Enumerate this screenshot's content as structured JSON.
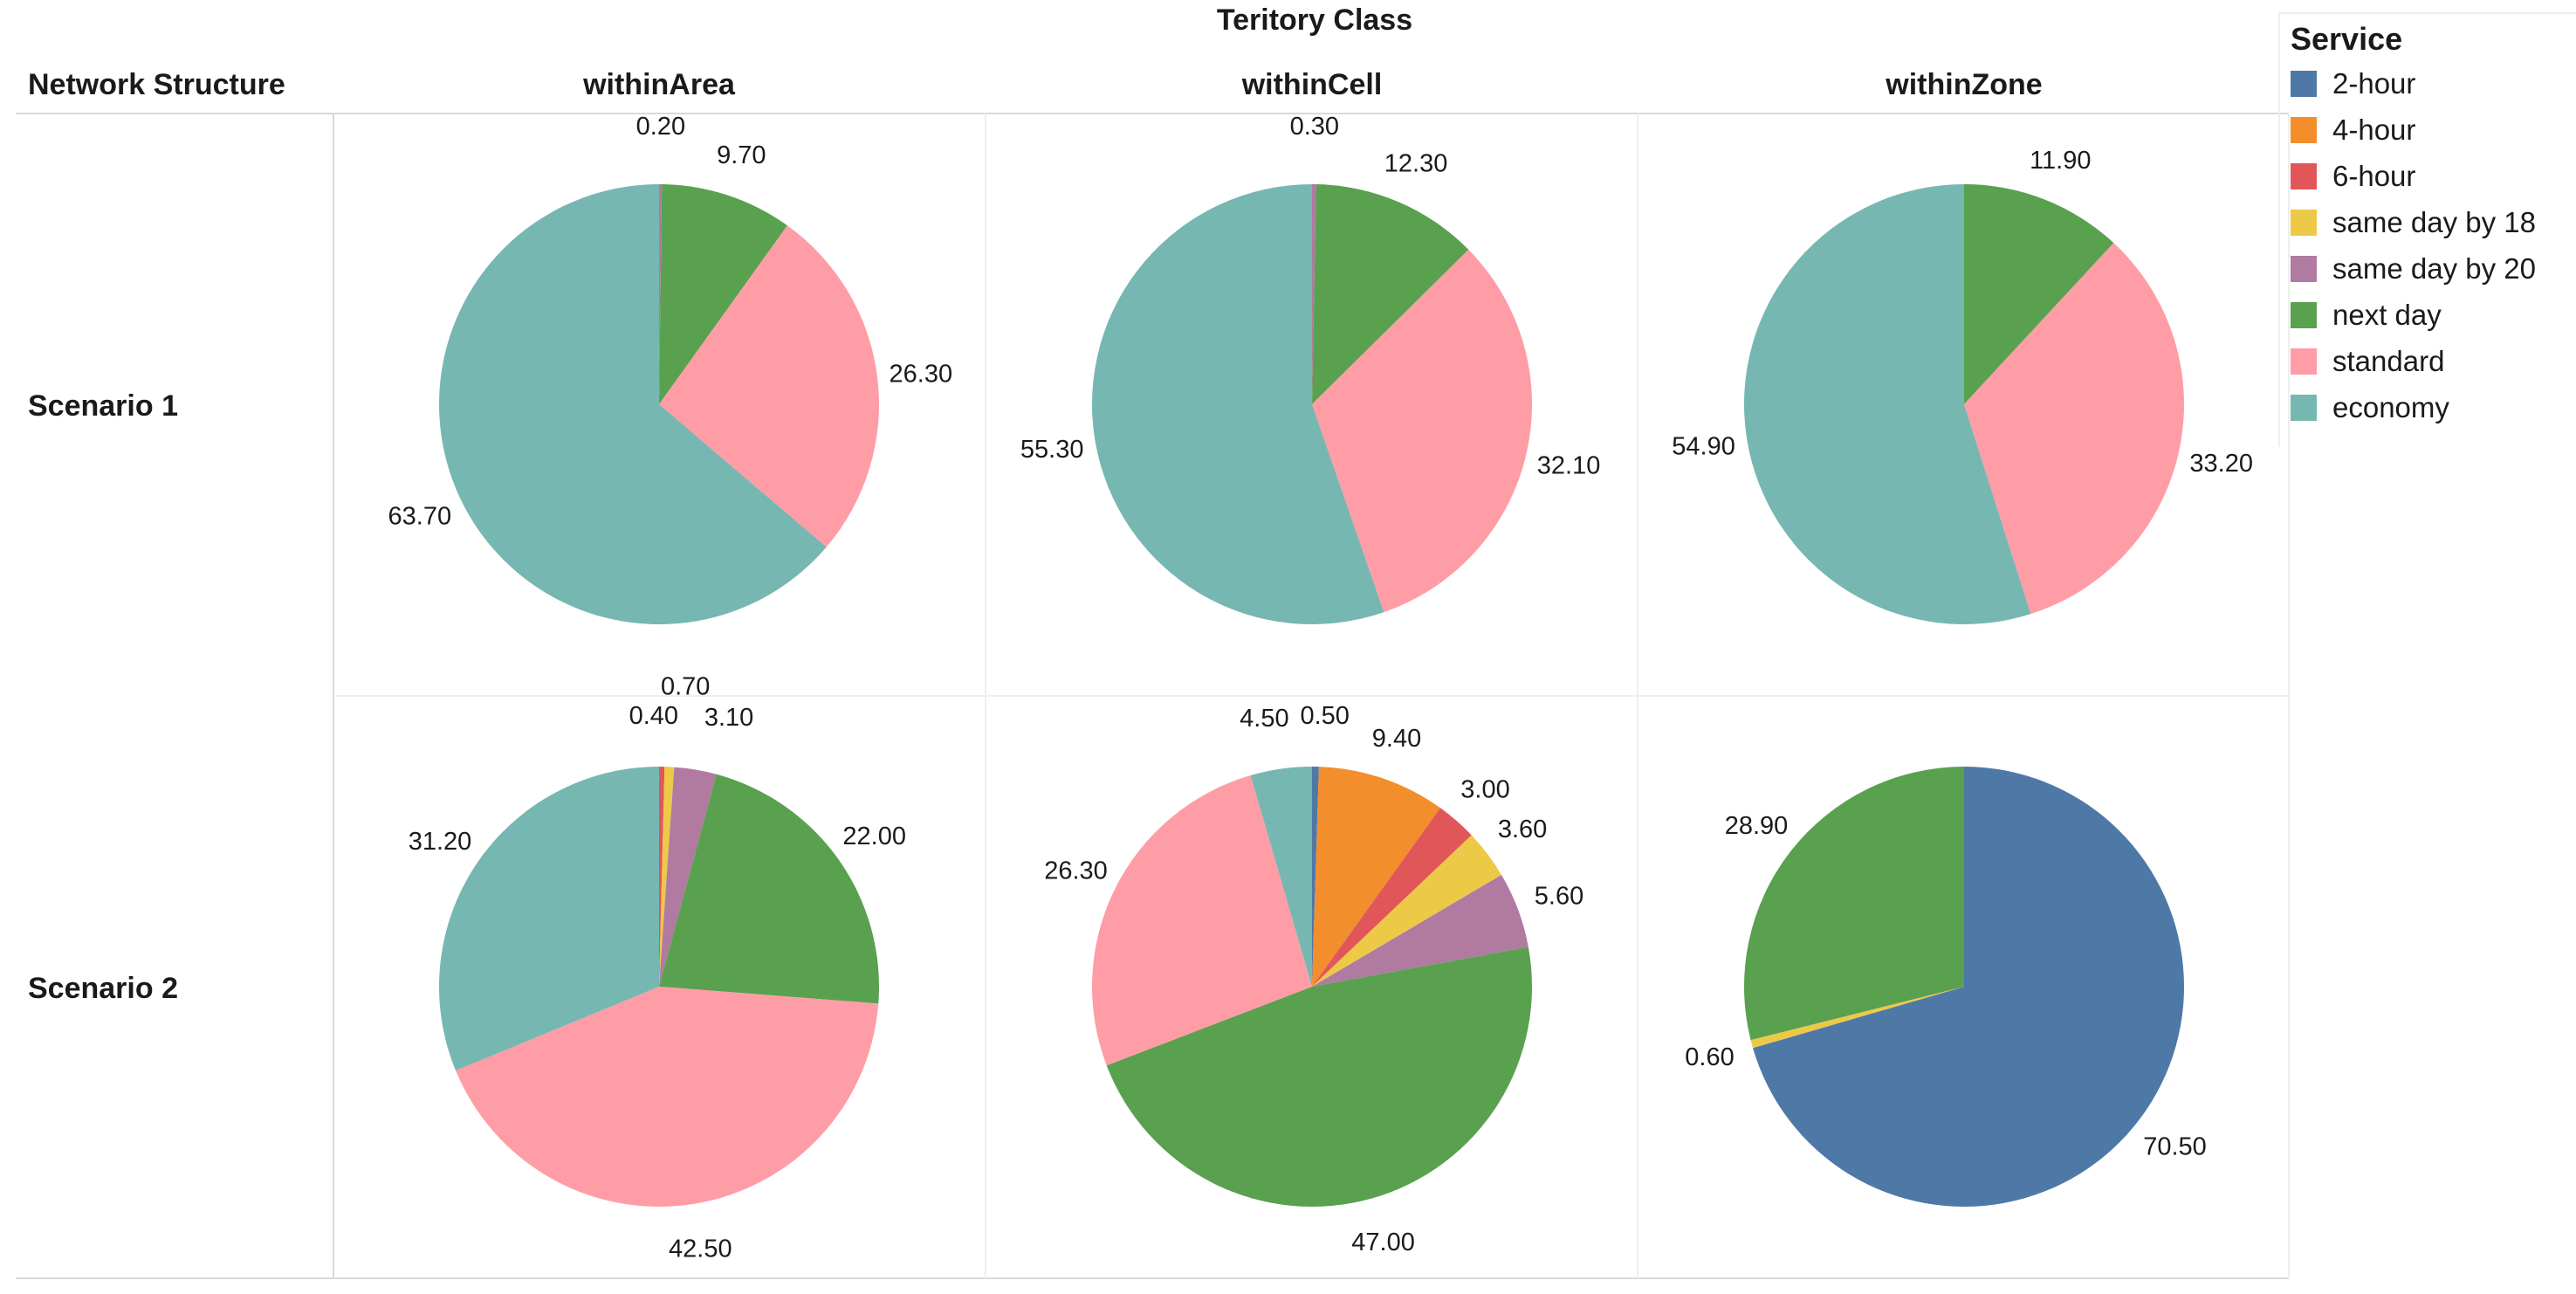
{
  "chart_data": {
    "type": "pie",
    "title": "Teritory Class",
    "row_header": "Network Structure",
    "columns": [
      "withinArea",
      "withinCell",
      "withinZone"
    ],
    "rows": [
      "Scenario 1",
      "Scenario 2"
    ],
    "legend_title": "Service",
    "categories": [
      "2-hour",
      "4-hour",
      "6-hour",
      "same day by 18",
      "same day by 20",
      "next day",
      "standard",
      "economy"
    ],
    "colors": {
      "2-hour": "#4e79a7",
      "4-hour": "#f28e2b",
      "6-hour": "#e15759",
      "same day by 18": "#edc948",
      "same day by 20": "#b07aa1",
      "next day": "#59a14f",
      "standard": "#ff9da7",
      "economy": "#76b7b2"
    },
    "legend_position": "top-right",
    "panels": [
      {
        "row": "Scenario 1",
        "column": "withinArea",
        "slices": [
          {
            "category": "same day by 20",
            "value": 0.2,
            "label": "0.20"
          },
          {
            "category": "next day",
            "value": 9.7,
            "label": "9.70"
          },
          {
            "category": "standard",
            "value": 26.3,
            "label": "26.30"
          },
          {
            "category": "economy",
            "value": 63.7,
            "label": "63.70"
          }
        ]
      },
      {
        "row": "Scenario 1",
        "column": "withinCell",
        "slices": [
          {
            "category": "same day by 20",
            "value": 0.3,
            "label": "0.30"
          },
          {
            "category": "next day",
            "value": 12.3,
            "label": "12.30"
          },
          {
            "category": "standard",
            "value": 32.1,
            "label": "32.10"
          },
          {
            "category": "economy",
            "value": 55.3,
            "label": "55.30"
          }
        ]
      },
      {
        "row": "Scenario 1",
        "column": "withinZone",
        "slices": [
          {
            "category": "next day",
            "value": 11.9,
            "label": "11.90"
          },
          {
            "category": "standard",
            "value": 33.2,
            "label": "33.20"
          },
          {
            "category": "economy",
            "value": 54.9,
            "label": "54.90"
          }
        ]
      },
      {
        "row": "Scenario 2",
        "column": "withinArea",
        "slices": [
          {
            "category": "6-hour",
            "value": 0.4,
            "label": "0.40"
          },
          {
            "category": "same day by 18",
            "value": 0.7,
            "label": "0.70"
          },
          {
            "category": "same day by 20",
            "value": 3.1,
            "label": "3.10"
          },
          {
            "category": "next day",
            "value": 22.0,
            "label": "22.00"
          },
          {
            "category": "standard",
            "value": 42.5,
            "label": "42.50"
          },
          {
            "category": "economy",
            "value": 31.2,
            "label": "31.20"
          }
        ]
      },
      {
        "row": "Scenario 2",
        "column": "withinCell",
        "slices": [
          {
            "category": "2-hour",
            "value": 0.5,
            "label": "0.50"
          },
          {
            "category": "4-hour",
            "value": 9.4,
            "label": "9.40"
          },
          {
            "category": "6-hour",
            "value": 3.0,
            "label": "3.00"
          },
          {
            "category": "same day by 18",
            "value": 3.6,
            "label": "3.60"
          },
          {
            "category": "same day by 20",
            "value": 5.6,
            "label": "5.60"
          },
          {
            "category": "next day",
            "value": 47.0,
            "label": "47.00"
          },
          {
            "category": "standard",
            "value": 26.3,
            "label": "26.30"
          },
          {
            "category": "economy",
            "value": 4.5,
            "label": "4.50"
          }
        ]
      },
      {
        "row": "Scenario 2",
        "column": "withinZone",
        "slices": [
          {
            "category": "2-hour",
            "value": 70.5,
            "label": "70.50"
          },
          {
            "category": "same day by 18",
            "value": 0.6,
            "label": "0.60"
          },
          {
            "category": "next day",
            "value": 28.9,
            "label": "28.90"
          }
        ]
      }
    ]
  }
}
